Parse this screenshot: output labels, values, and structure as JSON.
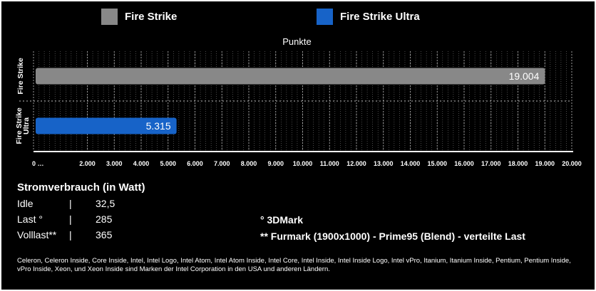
{
  "chart_data": {
    "type": "bar",
    "orientation": "horizontal",
    "title": "Punkte",
    "categories": [
      "Fire Strike",
      "Fire Strike Ultra"
    ],
    "values": [
      19004,
      5315
    ],
    "value_labels": [
      "19.004",
      "5.315"
    ],
    "colors": [
      "#888888",
      "#1763c8"
    ],
    "series": [
      {
        "name": "Fire Strike",
        "values": [
          19004,
          null
        ]
      },
      {
        "name": "Fire Strike Ultra",
        "values": [
          null,
          5315
        ]
      }
    ],
    "xlim": [
      0,
      20000
    ],
    "x_ticks": [
      0,
      2000,
      3000,
      4000,
      5000,
      6000,
      7000,
      8000,
      9000,
      10000,
      11000,
      12000,
      13000,
      14000,
      15000,
      16000,
      17000,
      18000,
      19000,
      20000
    ],
    "x_tick_labels": [
      "0 …",
      "2.000",
      "3.000",
      "4.000",
      "5.000",
      "6.000",
      "7.000",
      "8.000",
      "9.000",
      "10.000",
      "11.000",
      "12.000",
      "13.000",
      "14.000",
      "15.000",
      "16.000",
      "17.000",
      "18.000",
      "19.000",
      "20.000"
    ],
    "legend_position": "top",
    "grid": true
  },
  "legend": [
    {
      "label": "Fire Strike",
      "color": "#888888"
    },
    {
      "label": "Fire Strike Ultra",
      "color": "#1763c8"
    }
  ],
  "power": {
    "title": "Stromverbrauch (in Watt)",
    "rows": [
      {
        "label": "Idle",
        "sep": "|",
        "value": "32,5"
      },
      {
        "label": "Last °",
        "sep": "|",
        "value": "285"
      },
      {
        "label": "Volllast**",
        "sep": "|",
        "value": "365"
      }
    ]
  },
  "notes": {
    "n1": "°  3DMark",
    "n2": "** Furmark (1900x1000) - Prime95 (Blend) - verteilte Last"
  },
  "footer": "Celeron, Celeron Inside, Core Inside, Intel, Intel Logo, Intel Atom, Intel Atom Inside, Intel Core, Intel Inside, Intel Inside Logo, Intel vPro, Itanium, Itanium Inside, Pentium, Pentium Inside, vPro Inside, Xeon, und Xeon Inside sind Marken der Intel Corporation in den USA und anderen Ländern."
}
